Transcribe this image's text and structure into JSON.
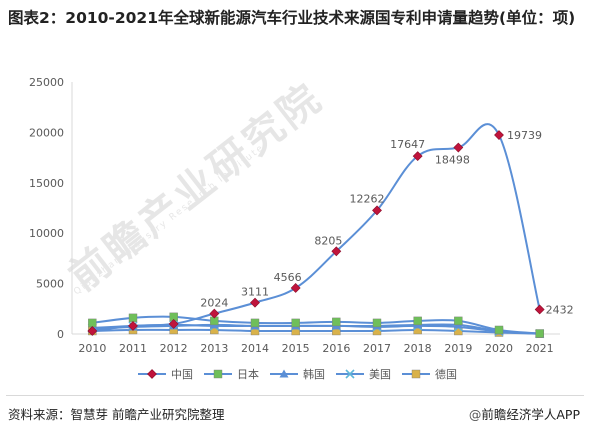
{
  "title": "图表2：2010-2021年全球新能源汽车行业技术来源国专利申请量趋势(单位：项)",
  "watermark": "前瞻产业研究院",
  "watermark_sub": "Qianzhan Industry Research Institute",
  "footer": {
    "source": "资料来源：智慧芽 前瞻产业研究院整理",
    "credit_symbol": "@",
    "credit": "前瞻经济学人APP"
  },
  "colors": {
    "中国": "#5b8fd6",
    "中国_marker": "#c0143c",
    "日本": "#5b8fd6",
    "日本_marker": "#6fbf5a",
    "韩国": "#5b8fd6",
    "韩国_marker": "#5b8fd6",
    "美国": "#5b8fd6",
    "美国_marker": "#5fb7d9",
    "德国": "#5b8fd6",
    "德国_marker": "#d9b24a"
  },
  "chart_data": {
    "type": "line",
    "title": "",
    "xlabel": "",
    "ylabel": "",
    "x": [
      "2010",
      "2011",
      "2012",
      "2013",
      "2014",
      "2015",
      "2016",
      "2017",
      "2018",
      "2019",
      "2020",
      "2021"
    ],
    "ylim": [
      0,
      25000
    ],
    "yticks": [
      "0",
      "5000",
      "10000",
      "15000",
      "20000",
      "25000"
    ],
    "grid": false,
    "legend_position": "bottom",
    "series": [
      {
        "name": "中国",
        "marker": "diamond",
        "values": [
          300,
          800,
          1000,
          2024,
          3111,
          4566,
          8205,
          12262,
          17647,
          18498,
          19739,
          2432
        ],
        "labels": [
          "",
          "",
          "",
          "2024",
          "3111",
          "4566",
          "8205",
          "12262",
          "17647",
          "18498",
          "19739",
          "2432"
        ]
      },
      {
        "name": "日本",
        "marker": "square",
        "values": [
          1100,
          1600,
          1700,
          1300,
          1100,
          1100,
          1200,
          1100,
          1300,
          1300,
          400,
          50
        ]
      },
      {
        "name": "韩国",
        "marker": "triangle",
        "values": [
          500,
          700,
          800,
          900,
          800,
          800,
          800,
          800,
          900,
          900,
          300,
          30
        ]
      },
      {
        "name": "美国",
        "marker": "x",
        "values": [
          600,
          800,
          900,
          800,
          800,
          800,
          800,
          700,
          800,
          700,
          250,
          30
        ]
      },
      {
        "name": "德国",
        "marker": "square",
        "values": [
          300,
          400,
          400,
          400,
          300,
          300,
          300,
          300,
          400,
          300,
          150,
          20
        ]
      }
    ]
  }
}
